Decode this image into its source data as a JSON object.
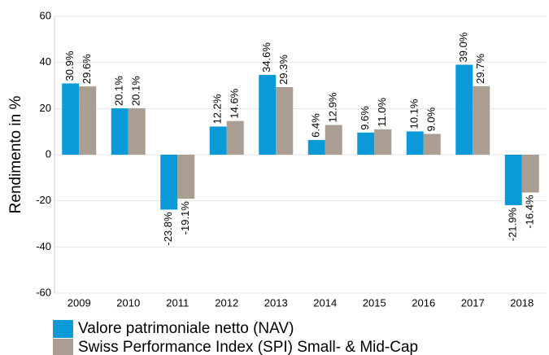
{
  "chart_data": {
    "type": "bar",
    "ylabel": "Rendimento in %",
    "categories": [
      "2009",
      "2010",
      "2011",
      "2012",
      "2013",
      "2014",
      "2015",
      "2016",
      "2017",
      "2018"
    ],
    "series": [
      {
        "name": "Valore patrimoniale netto (NAV)",
        "color": "#0b9ad8",
        "values": [
          30.9,
          20.1,
          -23.8,
          12.2,
          34.6,
          6.4,
          9.6,
          10.1,
          39.0,
          -21.9
        ],
        "value_labels": [
          "30.9%",
          "20.1%",
          "-23.8%",
          "12.2%",
          "34.6%",
          "6.4%",
          "9.6%",
          "10.1%",
          "39.0%",
          "-21.9%"
        ]
      },
      {
        "name": "Swiss Performance Index (SPI) Small- & Mid-Cap",
        "color": "#aa9e92",
        "values": [
          29.6,
          20.1,
          -19.1,
          14.6,
          29.3,
          12.9,
          11.0,
          9.0,
          29.7,
          -16.4
        ],
        "value_labels": [
          "29.6%",
          "20.1%",
          "-19.1%",
          "14.6%",
          "29.3%",
          "12.9%",
          "11.0%",
          "9.0%",
          "29.7%",
          "-16.4%"
        ]
      }
    ],
    "ylim": [
      -60,
      60
    ],
    "yticks": [
      -60,
      -40,
      -20,
      0,
      20,
      40,
      60
    ],
    "grid": true,
    "legend": "bottom"
  }
}
